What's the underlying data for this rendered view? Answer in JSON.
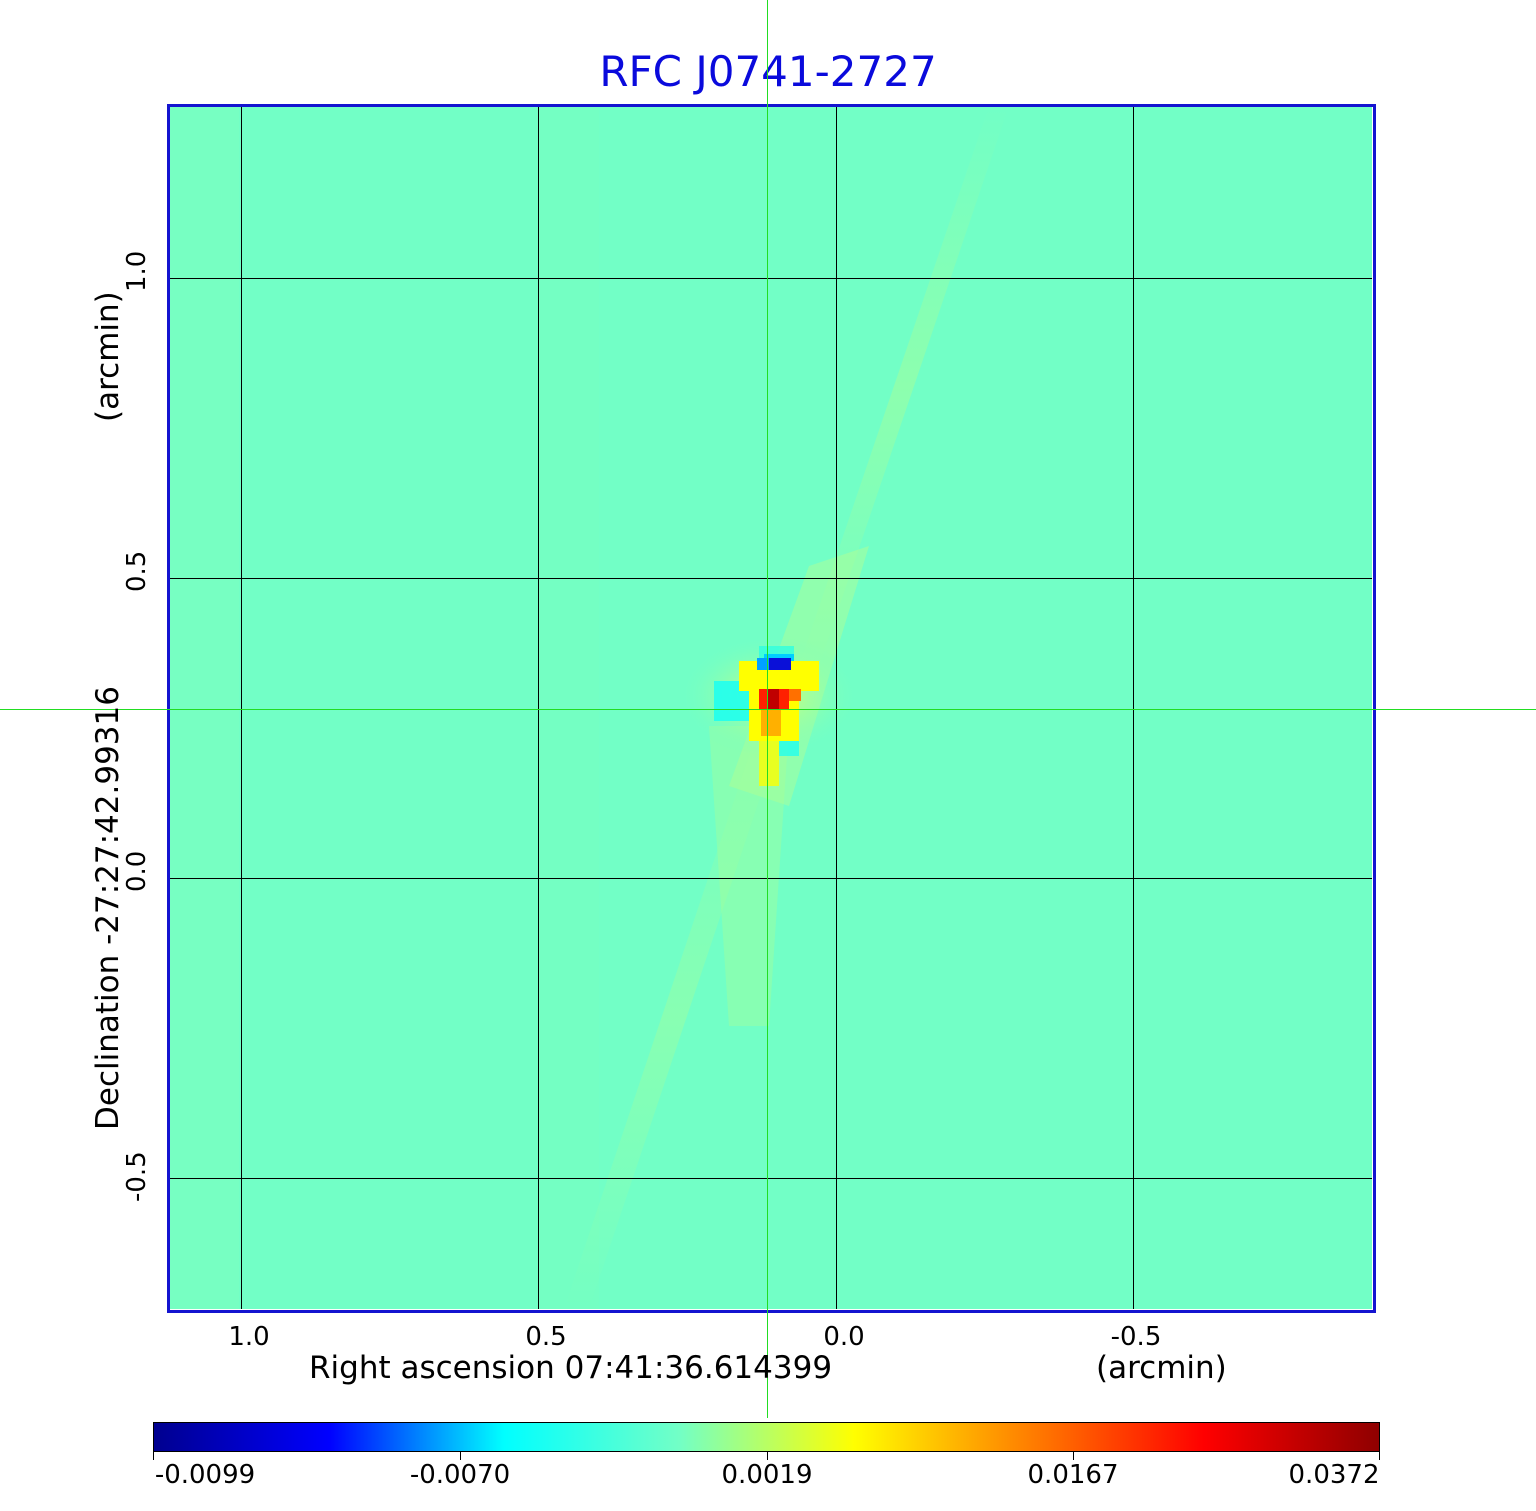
{
  "title": "RFC J0741-2727",
  "x_axis": {
    "label": "Right ascension  07:41:36.614399",
    "unit": "(arcmin)",
    "ticks": [
      "1.0",
      "0.5",
      "0.0",
      "-0.5"
    ]
  },
  "y_axis": {
    "label": "Declination  -27:27:42.99316",
    "unit": "(arcmin)",
    "ticks": [
      "1.0",
      "0.5",
      "0.0",
      "-0.5"
    ]
  },
  "colorbar": {
    "ticks": [
      "-0.0099",
      "-0.0070",
      "0.0019",
      "0.0167",
      "0.0372"
    ],
    "colors": [
      "#00008f",
      "#0000ff",
      "#00ffff",
      "#72ffc6",
      "#ffff00",
      "#ff7f00",
      "#ff0000",
      "#8f0000"
    ]
  },
  "colors": {
    "title": "#0a0adc",
    "frame": "#1414d0",
    "crosshair": "#22dd22",
    "background_map": "#72ffc6"
  }
}
